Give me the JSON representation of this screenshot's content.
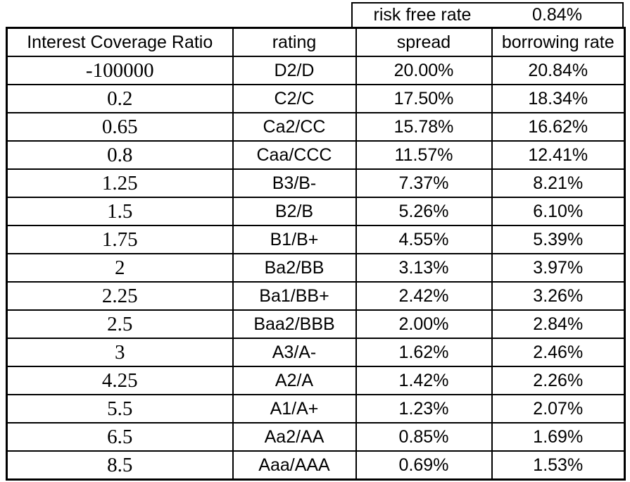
{
  "chart_data": {
    "type": "table",
    "header_note": {
      "label": "risk free rate",
      "value": "0.84%"
    },
    "columns": [
      "Interest Coverage Ratio",
      "rating",
      "spread",
      "borrowing rate"
    ],
    "rows": [
      {
        "ratio": "-100000",
        "rating": "D2/D",
        "spread": "20.00%",
        "borrowing_rate": "20.84%"
      },
      {
        "ratio": "0.2",
        "rating": "C2/C",
        "spread": "17.50%",
        "borrowing_rate": "18.34%"
      },
      {
        "ratio": "0.65",
        "rating": "Ca2/CC",
        "spread": "15.78%",
        "borrowing_rate": "16.62%"
      },
      {
        "ratio": "0.8",
        "rating": "Caa/CCC",
        "spread": "11.57%",
        "borrowing_rate": "12.41%"
      },
      {
        "ratio": "1.25",
        "rating": "B3/B-",
        "spread": "7.37%",
        "borrowing_rate": "8.21%"
      },
      {
        "ratio": "1.5",
        "rating": "B2/B",
        "spread": "5.26%",
        "borrowing_rate": "6.10%"
      },
      {
        "ratio": "1.75",
        "rating": "B1/B+",
        "spread": "4.55%",
        "borrowing_rate": "5.39%"
      },
      {
        "ratio": "2",
        "rating": "Ba2/BB",
        "spread": "3.13%",
        "borrowing_rate": "3.97%"
      },
      {
        "ratio": "2.25",
        "rating": "Ba1/BB+",
        "spread": "2.42%",
        "borrowing_rate": "3.26%"
      },
      {
        "ratio": "2.5",
        "rating": "Baa2/BBB",
        "spread": "2.00%",
        "borrowing_rate": "2.84%"
      },
      {
        "ratio": "3",
        "rating": "A3/A-",
        "spread": "1.62%",
        "borrowing_rate": "2.46%"
      },
      {
        "ratio": "4.25",
        "rating": "A2/A",
        "spread": "1.42%",
        "borrowing_rate": "2.26%"
      },
      {
        "ratio": "5.5",
        "rating": "A1/A+",
        "spread": "1.23%",
        "borrowing_rate": "2.07%"
      },
      {
        "ratio": "6.5",
        "rating": "Aa2/AA",
        "spread": "0.85%",
        "borrowing_rate": "1.69%"
      },
      {
        "ratio": "8.5",
        "rating": "Aaa/AAA",
        "spread": "0.69%",
        "borrowing_rate": "1.53%"
      }
    ]
  },
  "colors": {
    "border": "#000000",
    "background": "#ffffff",
    "text": "#000000"
  }
}
